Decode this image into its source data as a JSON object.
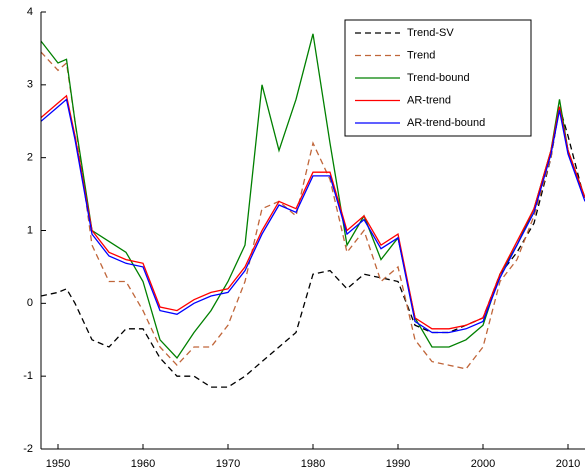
{
  "chart_data": {
    "type": "line",
    "x": [
      1948,
      1950,
      1951,
      1952,
      1954,
      1956,
      1958,
      1960,
      1962,
      1964,
      1966,
      1968,
      1970,
      1972,
      1974,
      1976,
      1978,
      1980,
      1982,
      1984,
      1986,
      1988,
      1990,
      1992,
      1994,
      1996,
      1998,
      2000,
      2002,
      2004,
      2006,
      2008,
      2009,
      2010,
      2012
    ],
    "xlim": [
      1948,
      2012
    ],
    "ylim": [
      -2,
      4
    ],
    "xticks": [
      1950,
      1960,
      1970,
      1980,
      1990,
      2000,
      2010
    ],
    "yticks": [
      -2,
      -1,
      0,
      1,
      2,
      3,
      4
    ],
    "legend": "upper right",
    "series": [
      {
        "name": "Trend-SV",
        "color": "#000000",
        "style": "dashed",
        "values": [
          0.1,
          0.15,
          0.2,
          0.0,
          -0.5,
          -0.6,
          -0.35,
          -0.35,
          -0.75,
          -1.0,
          -1.0,
          -1.15,
          -1.15,
          -1.0,
          -0.8,
          -0.6,
          -0.4,
          0.4,
          0.45,
          0.2,
          0.4,
          0.35,
          0.3,
          -0.3,
          -0.4,
          -0.4,
          -0.3,
          -0.2,
          0.4,
          0.7,
          1.1,
          2.0,
          2.7,
          2.3,
          1.4
        ]
      },
      {
        "name": "Trend",
        "color": "#c0663a",
        "style": "dashed",
        "values": [
          3.45,
          3.2,
          3.3,
          2.5,
          0.8,
          0.3,
          0.3,
          -0.1,
          -0.6,
          -0.85,
          -0.6,
          -0.6,
          -0.3,
          0.3,
          1.3,
          1.4,
          1.2,
          2.2,
          1.7,
          0.7,
          1.0,
          0.3,
          0.5,
          -0.5,
          -0.8,
          -0.85,
          -0.9,
          -0.6,
          0.3,
          0.6,
          1.2,
          2.0,
          2.7,
          2.1,
          1.4
        ]
      },
      {
        "name": "Trend-bound",
        "color": "#008000",
        "style": "solid",
        "values": [
          3.6,
          3.3,
          3.35,
          2.5,
          1.0,
          0.85,
          0.7,
          0.3,
          -0.5,
          -0.75,
          -0.4,
          -0.1,
          0.3,
          0.8,
          3.0,
          2.1,
          2.8,
          3.7,
          2.2,
          0.8,
          1.2,
          0.6,
          0.9,
          -0.2,
          -0.6,
          -0.6,
          -0.5,
          -0.3,
          0.4,
          0.8,
          1.3,
          2.1,
          2.8,
          2.1,
          1.45
        ]
      },
      {
        "name": "AR-trend",
        "color": "#ff0000",
        "style": "solid",
        "values": [
          2.55,
          2.75,
          2.85,
          2.3,
          1.0,
          0.7,
          0.6,
          0.55,
          -0.05,
          -0.1,
          0.05,
          0.15,
          0.2,
          0.5,
          1.0,
          1.4,
          1.3,
          1.8,
          1.8,
          1.0,
          1.2,
          0.8,
          0.95,
          -0.2,
          -0.35,
          -0.35,
          -0.3,
          -0.2,
          0.4,
          0.85,
          1.3,
          2.1,
          2.7,
          2.1,
          1.45
        ]
      },
      {
        "name": "AR-trend-bound",
        "color": "#0000ff",
        "style": "solid",
        "values": [
          2.5,
          2.7,
          2.8,
          2.25,
          0.95,
          0.65,
          0.55,
          0.5,
          -0.1,
          -0.15,
          0.0,
          0.1,
          0.15,
          0.45,
          0.95,
          1.35,
          1.25,
          1.75,
          1.75,
          0.95,
          1.15,
          0.75,
          0.9,
          -0.25,
          -0.4,
          -0.4,
          -0.35,
          -0.25,
          0.35,
          0.8,
          1.25,
          2.05,
          2.65,
          2.05,
          1.4
        ]
      }
    ]
  }
}
